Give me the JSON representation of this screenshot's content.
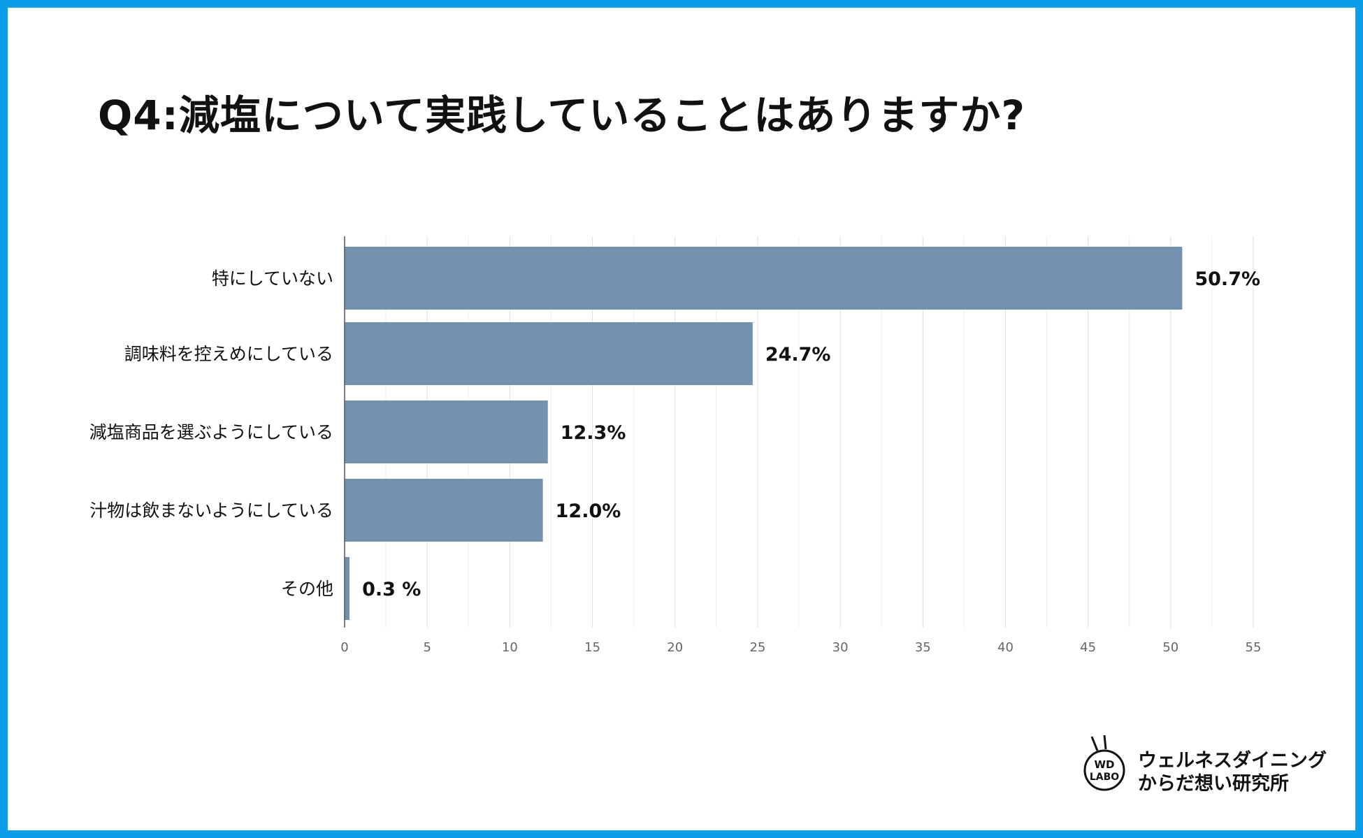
{
  "title": "Q4:減塩について実践していることはありますか?",
  "chart_data": {
    "type": "bar",
    "orientation": "horizontal",
    "categories": [
      "特にしていない",
      "調味料を控えめにしている",
      "減塩商品を選ぶようにしている",
      "汁物は飲まないようにしている",
      "その他"
    ],
    "values": [
      50.7,
      24.7,
      12.3,
      12.0,
      0.3
    ],
    "data_labels": [
      "50.7%",
      "24.7%",
      "12.3%",
      "12.0%",
      "0.3 %"
    ],
    "xlim": [
      0,
      55
    ],
    "xticks": [
      "0",
      "5",
      "10",
      "15",
      "20",
      "25",
      "30",
      "35",
      "40",
      "45",
      "50",
      "55"
    ],
    "grid": true,
    "bar_color": "#7391b1"
  },
  "logo": {
    "badge_line1": "WD",
    "badge_line2": "LABO",
    "name_line1": "ウェルネスダイニング",
    "name_line2": "からだ想い研究所"
  },
  "colors": {
    "frame": "#0a9ee8",
    "grid": "#e4e4e4",
    "axis": "#555555",
    "tick_label": "#666666"
  }
}
